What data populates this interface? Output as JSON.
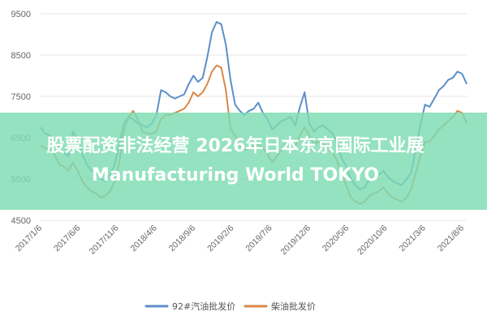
{
  "chart_data": {
    "type": "line",
    "title": "",
    "xlabel": "",
    "ylabel": "",
    "ylim": [
      4500,
      9500
    ],
    "y_ticks": [
      4500,
      5500,
      6500,
      7500,
      8500,
      9500
    ],
    "x_ticks": [
      "2017/1/6",
      "2017/6/6",
      "2017/11/6",
      "2018/4/6",
      "2018/9/6",
      "2019/2/6",
      "2019/7/6",
      "2019/12/6",
      "2020/5/6",
      "2020/10/6",
      "2021/3/6",
      "2021/8/6"
    ],
    "grid": true,
    "legend": "bottom",
    "series": [
      {
        "name": "92#汽油批发价",
        "color": "#5b8fc9",
        "values": [
          6750,
          6600,
          6550,
          6450,
          6200,
          6150,
          6050,
          6650,
          6450,
          6100,
          5850,
          5700,
          5650,
          5500,
          5450,
          5600,
          5850,
          6350,
          6850,
          7000,
          6950,
          6850,
          6800,
          6750,
          6850,
          7050,
          7650,
          7600,
          7500,
          7450,
          7500,
          7550,
          7800,
          8000,
          7850,
          7950,
          8450,
          9050,
          9300,
          9250,
          8750,
          7900,
          7300,
          7150,
          7050,
          7150,
          7200,
          7350,
          7100,
          6950,
          6700,
          6800,
          6900,
          6950,
          7000,
          6800,
          7250,
          7600,
          6850,
          6650,
          6750,
          6800,
          6700,
          6600,
          6400,
          6000,
          5800,
          5500,
          5350,
          5250,
          5300,
          5500,
          5550,
          5600,
          5700,
          5550,
          5450,
          5400,
          5350,
          5500,
          5650,
          6200,
          6800,
          7300,
          7250,
          7450,
          7650,
          7750,
          7900,
          7950,
          8100,
          8050,
          7800
        ]
      },
      {
        "name": "柴油批发价",
        "color": "#d9884a",
        "values": [
          6300,
          6250,
          6200,
          6100,
          5850,
          5800,
          5700,
          5900,
          5700,
          5450,
          5300,
          5200,
          5150,
          5050,
          5100,
          5200,
          5450,
          5900,
          6650,
          7000,
          7150,
          6950,
          6650,
          6600,
          6600,
          6650,
          6950,
          7050,
          7050,
          7100,
          7150,
          7200,
          7350,
          7600,
          7500,
          7600,
          7800,
          8100,
          8250,
          8200,
          7650,
          6700,
          6550,
          6300,
          6200,
          6250,
          6300,
          6350,
          6250,
          6100,
          5900,
          6050,
          6200,
          6350,
          6400,
          6300,
          6550,
          6750,
          6550,
          6350,
          6400,
          6350,
          6250,
          6150,
          5950,
          5600,
          5350,
          5050,
          4950,
          4900,
          4950,
          5100,
          5150,
          5200,
          5300,
          5150,
          5050,
          5000,
          4950,
          5050,
          5250,
          5650,
          6050,
          6400,
          6400,
          6550,
          6700,
          6800,
          6900,
          7000,
          7150,
          7100,
          6850
        ]
      }
    ]
  },
  "overlay": {
    "text": "股票配资非法经营 2026年日本东京国际工业展 Manufacturing World TOKYO"
  }
}
